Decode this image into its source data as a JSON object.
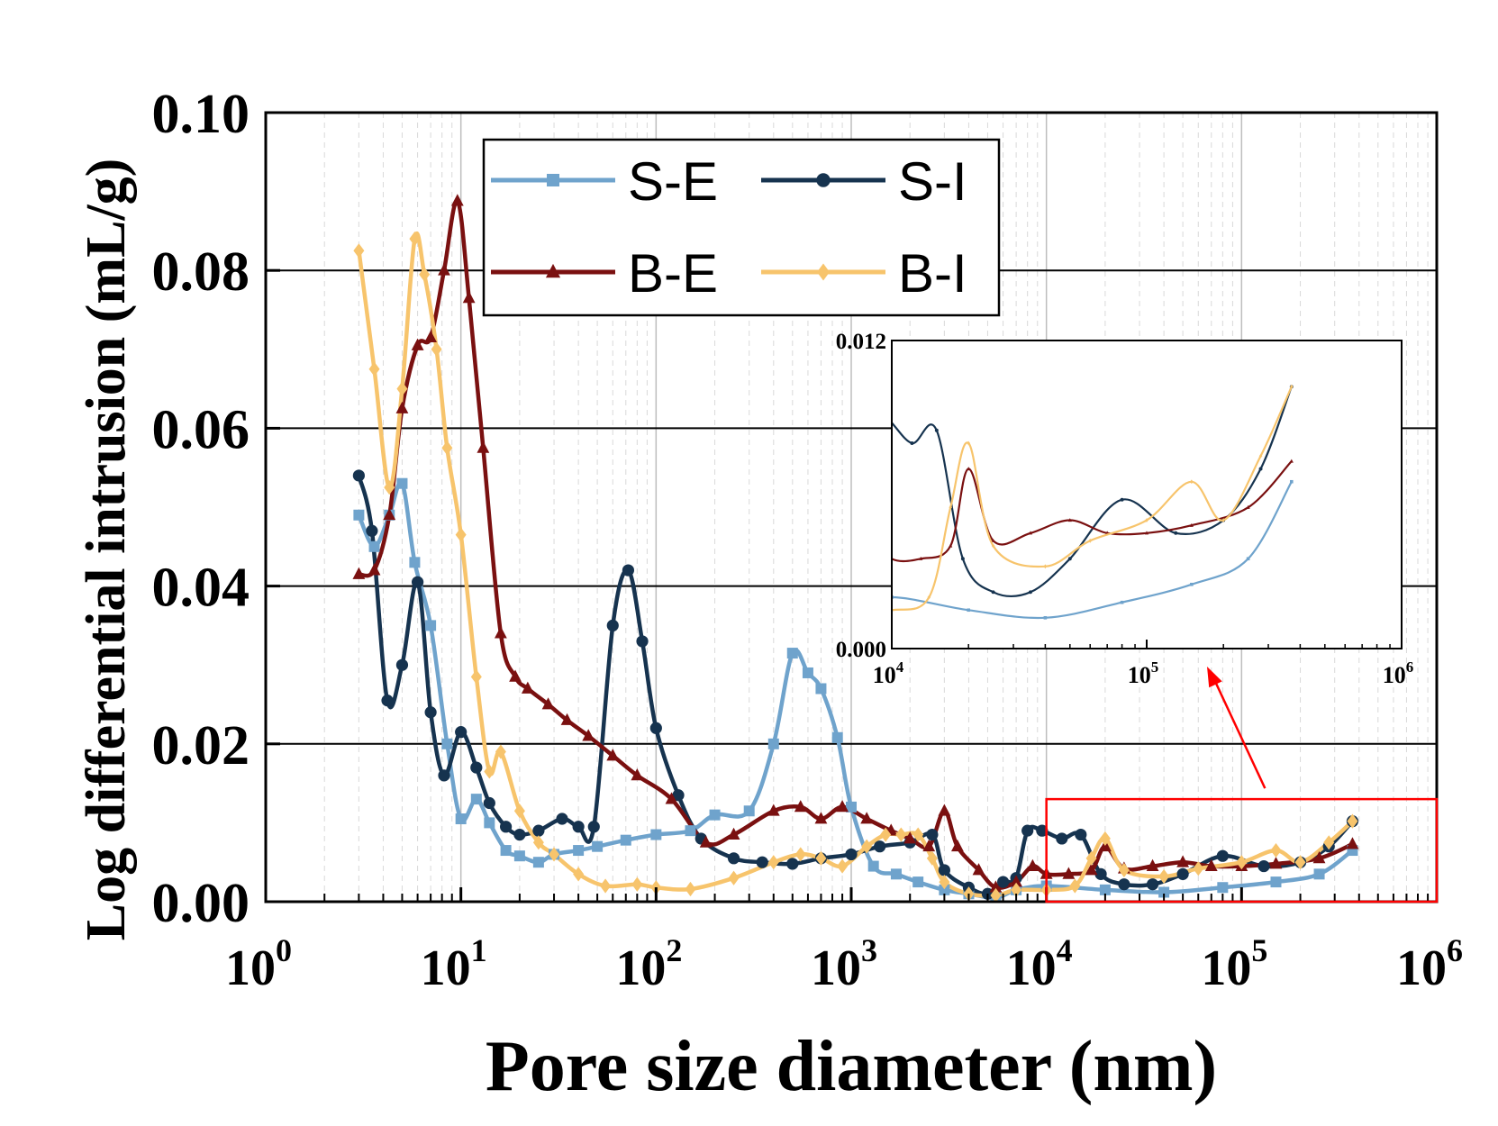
{
  "chart_data": {
    "type": "line",
    "xscale": "log",
    "xlabel": "Pore size diameter (nm)",
    "ylabel": "Log differential intrusion (mL/g)",
    "xlim": [
      1,
      1000000
    ],
    "ylim": [
      0,
      0.1
    ],
    "x_tick_labels": [
      {
        "base": "10",
        "exp": "0"
      },
      {
        "base": "10",
        "exp": "1"
      },
      {
        "base": "10",
        "exp": "2"
      },
      {
        "base": "10",
        "exp": "3"
      },
      {
        "base": "10",
        "exp": "4"
      },
      {
        "base": "10",
        "exp": "5"
      },
      {
        "base": "10",
        "exp": "6"
      }
    ],
    "y_tick_labels": [
      "0.00",
      "0.02",
      "0.04",
      "0.06",
      "0.08",
      "0.10"
    ],
    "legend_position": "top-center",
    "series": [
      {
        "name": "S-E",
        "color": "#6fa3cc",
        "marker": "square",
        "points": [
          [
            3,
            0.049
          ],
          [
            3.6,
            0.045
          ],
          [
            4.3,
            0.049
          ],
          [
            5,
            0.053
          ],
          [
            5.8,
            0.043
          ],
          [
            7,
            0.035
          ],
          [
            8.5,
            0.02
          ],
          [
            10,
            0.0105
          ],
          [
            12,
            0.013
          ],
          [
            14,
            0.01
          ],
          [
            17,
            0.0065
          ],
          [
            20,
            0.0058
          ],
          [
            25,
            0.005
          ],
          [
            30,
            0.006
          ],
          [
            40,
            0.0065
          ],
          [
            50,
            0.007
          ],
          [
            70,
            0.0078
          ],
          [
            100,
            0.0085
          ],
          [
            150,
            0.009
          ],
          [
            200,
            0.011
          ],
          [
            300,
            0.0115
          ],
          [
            400,
            0.02
          ],
          [
            500,
            0.0315
          ],
          [
            600,
            0.029
          ],
          [
            700,
            0.027
          ],
          [
            850,
            0.0208
          ],
          [
            1000,
            0.012
          ],
          [
            1300,
            0.0045
          ],
          [
            1700,
            0.0035
          ],
          [
            2200,
            0.0025
          ],
          [
            3000,
            0.0015
          ],
          [
            4000,
            0.001
          ],
          [
            5500,
            0.0005
          ],
          [
            7000,
            0.0015
          ],
          [
            10000,
            0.002
          ],
          [
            20000,
            0.0015
          ],
          [
            40000,
            0.0012
          ],
          [
            80000,
            0.0018
          ],
          [
            150000,
            0.0025
          ],
          [
            250000,
            0.0035
          ],
          [
            370000,
            0.0065
          ]
        ]
      },
      {
        "name": "S-I",
        "color": "#16334f",
        "marker": "circle",
        "points": [
          [
            3,
            0.054
          ],
          [
            3.5,
            0.047
          ],
          [
            4.2,
            0.0255
          ],
          [
            5,
            0.03
          ],
          [
            6,
            0.0405
          ],
          [
            7,
            0.024
          ],
          [
            8.2,
            0.016
          ],
          [
            10,
            0.0215
          ],
          [
            12,
            0.017
          ],
          [
            14,
            0.0125
          ],
          [
            17,
            0.0095
          ],
          [
            20,
            0.0085
          ],
          [
            25,
            0.009
          ],
          [
            33,
            0.0105
          ],
          [
            40,
            0.0095
          ],
          [
            48,
            0.0095
          ],
          [
            60,
            0.035
          ],
          [
            72,
            0.042
          ],
          [
            85,
            0.033
          ],
          [
            100,
            0.022
          ],
          [
            130,
            0.0135
          ],
          [
            170,
            0.008
          ],
          [
            250,
            0.0055
          ],
          [
            350,
            0.005
          ],
          [
            500,
            0.0048
          ],
          [
            700,
            0.0055
          ],
          [
            1000,
            0.006
          ],
          [
            1400,
            0.007
          ],
          [
            2000,
            0.0075
          ],
          [
            2600,
            0.0085
          ],
          [
            3000,
            0.004
          ],
          [
            4000,
            0.0018
          ],
          [
            5000,
            0.001
          ],
          [
            6000,
            0.0025
          ],
          [
            7000,
            0.003
          ],
          [
            8000,
            0.009
          ],
          [
            9500,
            0.009
          ],
          [
            12000,
            0.008
          ],
          [
            15000,
            0.0085
          ],
          [
            19000,
            0.0035
          ],
          [
            25000,
            0.0022
          ],
          [
            35000,
            0.0022
          ],
          [
            50000,
            0.0035
          ],
          [
            80000,
            0.0058
          ],
          [
            130000,
            0.0045
          ],
          [
            200000,
            0.005
          ],
          [
            280000,
            0.007
          ],
          [
            370000,
            0.0102
          ]
        ]
      },
      {
        "name": "B-E",
        "color": "#7a1010",
        "marker": "triangle",
        "points": [
          [
            3,
            0.0415
          ],
          [
            3.6,
            0.042
          ],
          [
            4.3,
            0.049
          ],
          [
            5,
            0.0625
          ],
          [
            6,
            0.0705
          ],
          [
            7,
            0.0715
          ],
          [
            8.2,
            0.08
          ],
          [
            9.6,
            0.0888
          ],
          [
            11,
            0.0765
          ],
          [
            13,
            0.0575
          ],
          [
            16,
            0.034
          ],
          [
            19,
            0.0285
          ],
          [
            22,
            0.027
          ],
          [
            28,
            0.025
          ],
          [
            35,
            0.023
          ],
          [
            45,
            0.021
          ],
          [
            60,
            0.0185
          ],
          [
            80,
            0.016
          ],
          [
            120,
            0.013
          ],
          [
            180,
            0.0075
          ],
          [
            250,
            0.0085
          ],
          [
            400,
            0.0115
          ],
          [
            550,
            0.012
          ],
          [
            700,
            0.0105
          ],
          [
            900,
            0.012
          ],
          [
            1200,
            0.0105
          ],
          [
            1600,
            0.009
          ],
          [
            2000,
            0.008
          ],
          [
            2500,
            0.007
          ],
          [
            3000,
            0.0115
          ],
          [
            3500,
            0.007
          ],
          [
            4500,
            0.004
          ],
          [
            5500,
            0.0018
          ],
          [
            7000,
            0.0025
          ],
          [
            8500,
            0.0045
          ],
          [
            10000,
            0.0035
          ],
          [
            13000,
            0.0035
          ],
          [
            17000,
            0.004
          ],
          [
            20000,
            0.007
          ],
          [
            25000,
            0.0042
          ],
          [
            35000,
            0.0045
          ],
          [
            50000,
            0.005
          ],
          [
            70000,
            0.0045
          ],
          [
            100000,
            0.0045
          ],
          [
            150000,
            0.0048
          ],
          [
            250000,
            0.0055
          ],
          [
            370000,
            0.0073
          ]
        ]
      },
      {
        "name": "B-I",
        "color": "#f7c46c",
        "marker": "diamond",
        "points": [
          [
            3,
            0.0825
          ],
          [
            3.6,
            0.0675
          ],
          [
            4.3,
            0.0525
          ],
          [
            5,
            0.065
          ],
          [
            5.8,
            0.084
          ],
          [
            6.5,
            0.0795
          ],
          [
            7.5,
            0.07
          ],
          [
            8.5,
            0.0575
          ],
          [
            10,
            0.0465
          ],
          [
            12,
            0.0285
          ],
          [
            14,
            0.0165
          ],
          [
            16,
            0.019
          ],
          [
            20,
            0.0115
          ],
          [
            25,
            0.0075
          ],
          [
            30,
            0.006
          ],
          [
            40,
            0.0035
          ],
          [
            55,
            0.002
          ],
          [
            80,
            0.0022
          ],
          [
            100,
            0.0018
          ],
          [
            150,
            0.0016
          ],
          [
            250,
            0.003
          ],
          [
            400,
            0.005
          ],
          [
            550,
            0.006
          ],
          [
            700,
            0.0055
          ],
          [
            900,
            0.0045
          ],
          [
            1200,
            0.007
          ],
          [
            1500,
            0.0085
          ],
          [
            1800,
            0.0085
          ],
          [
            2200,
            0.0085
          ],
          [
            2600,
            0.0055
          ],
          [
            3000,
            0.0025
          ],
          [
            4000,
            0.001
          ],
          [
            5500,
            0.0008
          ],
          [
            7000,
            0.0015
          ],
          [
            10000,
            0.0015
          ],
          [
            14000,
            0.002
          ],
          [
            17000,
            0.0055
          ],
          [
            20000,
            0.008
          ],
          [
            25000,
            0.004
          ],
          [
            40000,
            0.0032
          ],
          [
            60000,
            0.0042
          ],
          [
            100000,
            0.005
          ],
          [
            150000,
            0.0065
          ],
          [
            200000,
            0.005
          ],
          [
            280000,
            0.0075
          ],
          [
            370000,
            0.0102
          ]
        ]
      }
    ],
    "highlight_box": {
      "xrange": [
        10000,
        1000000
      ],
      "yrange": [
        0,
        0.013
      ],
      "color": "#ff0000"
    },
    "inset": {
      "xlim": [
        10000,
        1000000
      ],
      "ylim": [
        0,
        0.012
      ],
      "x_tick_labels": [
        {
          "base": "10",
          "exp": "4"
        },
        {
          "base": "10",
          "exp": "5"
        },
        {
          "base": "10",
          "exp": "6"
        }
      ],
      "y_tick_labels": [
        "0.000",
        "0.012"
      ]
    }
  }
}
